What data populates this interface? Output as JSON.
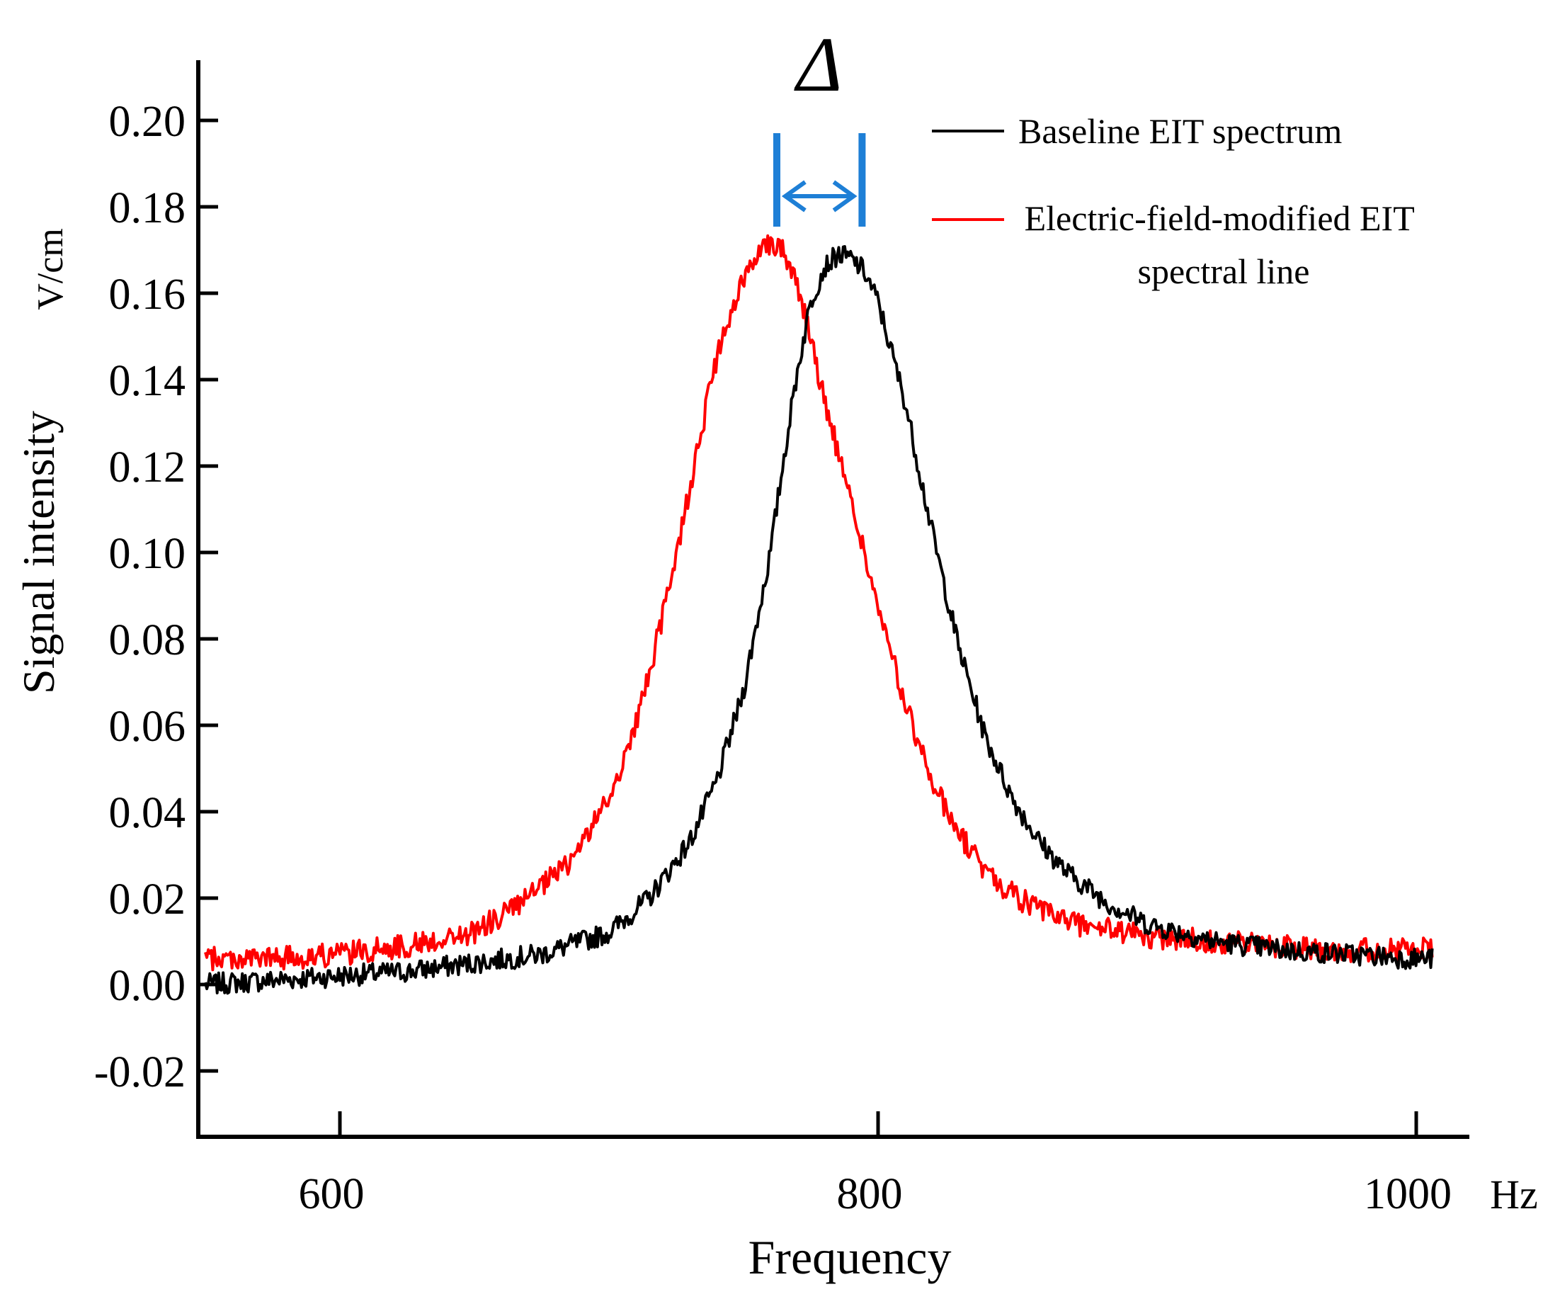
{
  "chart_data": {
    "type": "line",
    "title": "",
    "xlabel": "Frequency",
    "xunit": "Hz",
    "ylabel": "Signal intensity",
    "yunit": "V/cm",
    "xlim": [
      540,
      1010
    ],
    "ylim": [
      -0.035,
      0.205
    ],
    "xticks": [
      600,
      800,
      1000
    ],
    "yticks": [
      0.2,
      0.18,
      0.16,
      0.14,
      0.12,
      0.1,
      0.08,
      0.06,
      0.04,
      0.02,
      0.0,
      -0.02
    ],
    "ytick_labels": [
      "0.20",
      "0.18",
      "0.16",
      "0.14",
      "0.12",
      "0.10",
      "0.08",
      "0.06",
      "0.04",
      "0.02",
      "0.00",
      "-0.02"
    ],
    "xtick_labels": [
      "600",
      "800",
      "1000"
    ],
    "grid": false,
    "legend_position": "top-right",
    "series": [
      {
        "name": "Baseline EIT spectrum",
        "color": "#000000",
        "x": [
          550,
          575,
          600,
          625,
          650,
          675,
          700,
          715,
          730,
          740,
          750,
          760,
          765,
          770,
          775,
          780,
          785,
          790,
          795,
          800,
          810,
          820,
          830,
          840,
          850,
          860,
          870,
          885,
          900,
          925,
          950,
          975,
          1000
        ],
        "values": [
          0.0,
          0.001,
          0.002,
          0.003,
          0.005,
          0.007,
          0.012,
          0.02,
          0.033,
          0.047,
          0.068,
          0.1,
          0.122,
          0.142,
          0.158,
          0.166,
          0.169,
          0.168,
          0.165,
          0.158,
          0.135,
          0.105,
          0.078,
          0.057,
          0.043,
          0.033,
          0.026,
          0.019,
          0.014,
          0.01,
          0.008,
          0.007,
          0.006
        ],
        "noise": 0.0025
      },
      {
        "name": "Electric-field-modified EIT spectral line",
        "color": "#ff0000",
        "x": [
          550,
          575,
          600,
          625,
          650,
          670,
          685,
          700,
          710,
          720,
          730,
          740,
          750,
          755,
          760,
          765,
          770,
          775,
          780,
          790,
          800,
          810,
          820,
          830,
          840,
          850,
          860,
          875,
          900,
          925,
          950,
          975,
          1000
        ],
        "values": [
          0.006,
          0.006,
          0.007,
          0.009,
          0.012,
          0.02,
          0.028,
          0.043,
          0.06,
          0.085,
          0.115,
          0.145,
          0.163,
          0.17,
          0.172,
          0.17,
          0.162,
          0.15,
          0.135,
          0.112,
          0.087,
          0.065,
          0.047,
          0.035,
          0.026,
          0.021,
          0.017,
          0.014,
          0.011,
          0.01,
          0.009,
          0.008,
          0.008
        ],
        "noise": 0.0028
      }
    ],
    "annotation": {
      "symbol": "Δ",
      "x_from": 765,
      "x_to": 793,
      "color": "#1e7fd6"
    }
  }
}
